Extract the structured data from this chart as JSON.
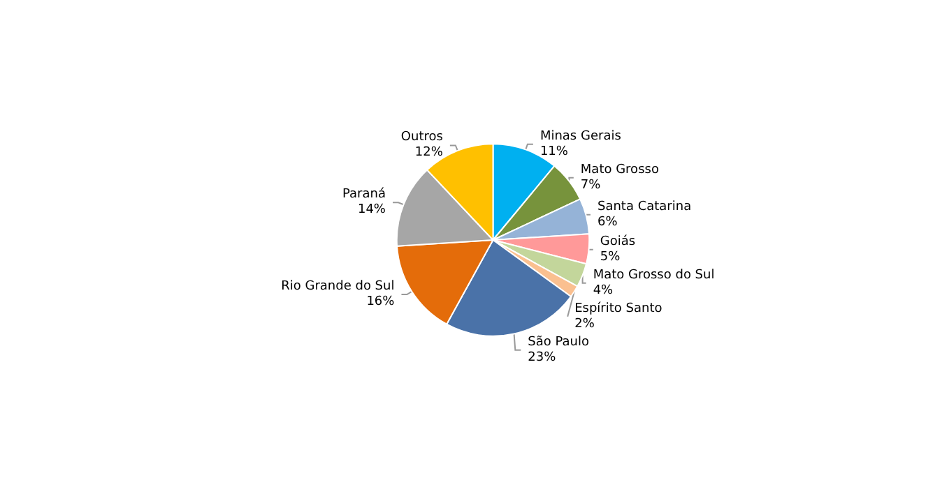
{
  "chart_data": {
    "type": "pie",
    "categories": [
      "Minas Gerais",
      "Mato Grosso",
      "Santa Catarina",
      "Goiás",
      "Mato Grosso do Sul",
      "Espírito Santo",
      "São Paulo",
      "Rio Grande do Sul",
      "Paraná",
      "Outros"
    ],
    "values": [
      11,
      7,
      6,
      5,
      4,
      2,
      23,
      16,
      14,
      12
    ],
    "colors": [
      "#00b0f0",
      "#77933c",
      "#95b3d7",
      "#ff9999",
      "#c3d69b",
      "#fac090",
      "#4a72a8",
      "#e46c0a",
      "#a6a6a6",
      "#ffc000"
    ],
    "value_labels": [
      "11%",
      "7%",
      "6%",
      "5%",
      "4%",
      "2%",
      "23%",
      "16%",
      "14%",
      "12%"
    ],
    "legend": false
  }
}
